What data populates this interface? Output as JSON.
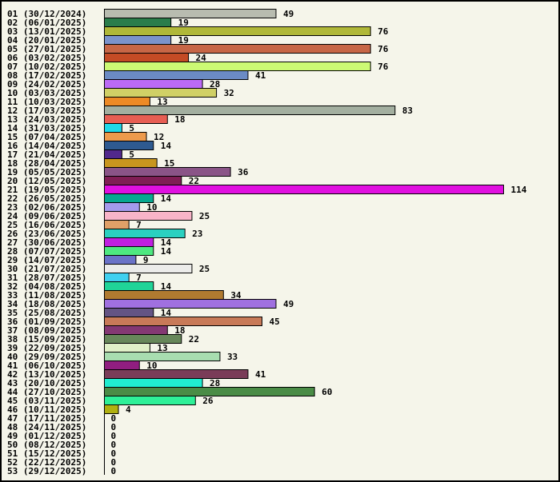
{
  "chart_data": {
    "type": "bar",
    "orientation": "horizontal",
    "title": "",
    "xlabel": "",
    "ylabel": "",
    "xlim": [
      0,
      114
    ],
    "grid": false,
    "categories": [
      "01 (30/12/2024)",
      "02 (06/01/2025)",
      "03 (13/01/2025)",
      "04 (20/01/2025)",
      "05 (27/01/2025)",
      "06 (03/02/2025)",
      "07 (10/02/2025)",
      "08 (17/02/2025)",
      "09 (24/02/2025)",
      "10 (03/03/2025)",
      "11 (10/03/2025)",
      "12 (17/03/2025)",
      "13 (24/03/2025)",
      "14 (31/03/2025)",
      "15 (07/04/2025)",
      "16 (14/04/2025)",
      "17 (21/04/2025)",
      "18 (28/04/2025)",
      "19 (05/05/2025)",
      "20 (12/05/2025)",
      "21 (19/05/2025)",
      "22 (26/05/2025)",
      "23 (02/06/2025)",
      "24 (09/06/2025)",
      "25 (16/06/2025)",
      "26 (23/06/2025)",
      "27 (30/06/2025)",
      "28 (07/07/2025)",
      "29 (14/07/2025)",
      "30 (21/07/2025)",
      "31 (28/07/2025)",
      "32 (04/08/2025)",
      "33 (11/08/2025)",
      "34 (18/08/2025)",
      "35 (25/08/2025)",
      "36 (01/09/2025)",
      "37 (08/09/2025)",
      "38 (15/09/2025)",
      "39 (22/09/2025)",
      "40 (29/09/2025)",
      "41 (06/10/2025)",
      "42 (13/10/2025)",
      "43 (20/10/2025)",
      "44 (27/10/2025)",
      "45 (03/11/2025)",
      "46 (10/11/2025)",
      "47 (17/11/2025)",
      "48 (24/11/2025)",
      "49 (01/12/2025)",
      "50 (08/12/2025)",
      "51 (15/12/2025)",
      "52 (22/12/2025)",
      "53 (29/12/2025)"
    ],
    "values": [
      49,
      19,
      76,
      19,
      76,
      24,
      76,
      41,
      28,
      32,
      13,
      83,
      18,
      5,
      12,
      14,
      5,
      15,
      36,
      22,
      114,
      14,
      10,
      25,
      7,
      23,
      14,
      14,
      9,
      25,
      7,
      14,
      34,
      49,
      14,
      45,
      18,
      22,
      13,
      33,
      10,
      41,
      28,
      60,
      26,
      4,
      0,
      0,
      0,
      0,
      0,
      0,
      0
    ],
    "colors": [
      "#b8bcb0",
      "#2a7d4b",
      "#b0b838",
      "#7b93cc",
      "#c76646",
      "#c44b25",
      "#ccfa74",
      "#6b8bc4",
      "#bb6af5",
      "#d0d066",
      "#ed8a25",
      "#a3afa0",
      "#e75e53",
      "#20d8e8",
      "#ed9a4c",
      "#2e5a90",
      "#51288c",
      "#c8961f",
      "#8a5487",
      "#801e55",
      "#e010e0",
      "#08a890",
      "#a59aec",
      "#f8b4c8",
      "#e0a068",
      "#2ad0c0",
      "#c020e0",
      "#4ee880",
      "#6a72c8",
      "#ececea",
      "#40d0f0",
      "#20d498",
      "#b07a30",
      "#a070e0",
      "#645484",
      "#c87a58",
      "#843873",
      "#67875a",
      "#e0f0c8",
      "#a8ddb0",
      "#901e80",
      "#7a3c58",
      "#20ecd0",
      "#4a8c46",
      "#2ef098",
      "#b0b010",
      "#cccccc",
      "#cccccc",
      "#cccccc",
      "#cccccc",
      "#cccccc",
      "#cccccc",
      "#cccccc"
    ],
    "background": "#f5f5ea"
  }
}
